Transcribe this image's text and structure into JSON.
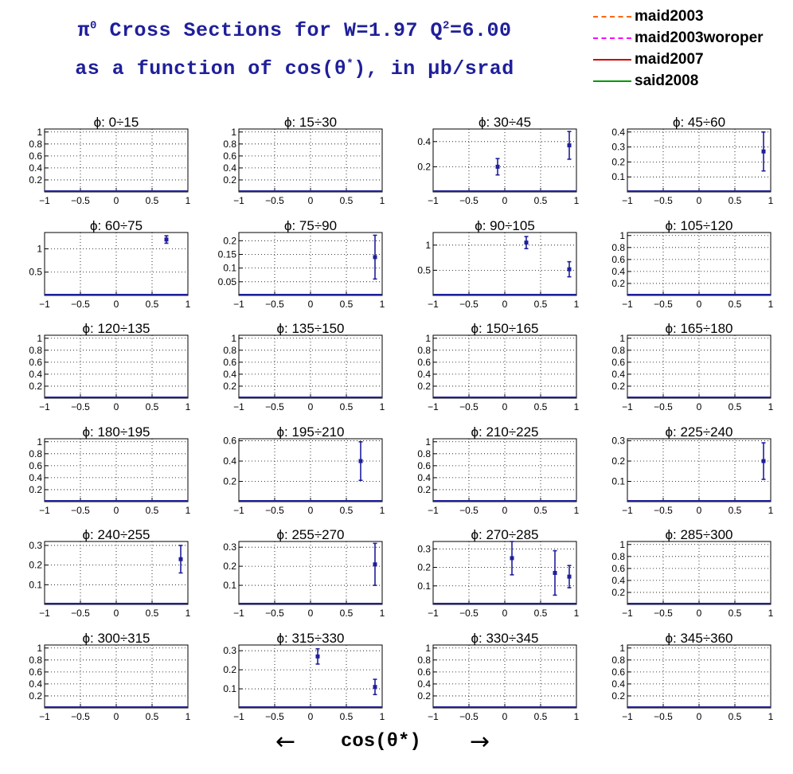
{
  "header": {
    "line1_pi": "π",
    "line1_pi_sup": "0",
    "line1_a": " Cross Sections for W=1.97  Q",
    "line1_q_sup": "2",
    "line1_b": "=6.00",
    "line2_a": "as a function of cos(θ",
    "line2_sup": "*",
    "line2_b": "), in μb/srad"
  },
  "legend": [
    {
      "label": "maid2003",
      "color": "#ff6600",
      "style": "dashdot"
    },
    {
      "label": "maid2003woroper",
      "color": "#ff00ff",
      "style": "dashed"
    },
    {
      "label": "maid2007",
      "color": "#cc0000",
      "style": "solid"
    },
    {
      "label": "said2008",
      "color": "#009900",
      "style": "solid"
    }
  ],
  "footer": {
    "left_arrow": "←",
    "xlabel": "cos(θ*)",
    "right_arrow": "→"
  },
  "colors": {
    "title": "#1f1f9a",
    "points": "#1f1f9a",
    "baseline": "#1f1f9a"
  },
  "chart_data": {
    "type": "scatter",
    "xlabel": "cos(θ*)",
    "ylabel": "",
    "xlim": [
      -1,
      1
    ],
    "xticks": [
      "−1",
      "−0.5",
      "0",
      "0.5",
      "1"
    ],
    "grid": true,
    "panels": [
      {
        "title": "ϕ:  0÷15",
        "ylim": [
          0,
          1.05
        ],
        "yticks": [
          "0.2",
          "0.4",
          "0.6",
          "0.8",
          "1"
        ],
        "points": []
      },
      {
        "title": "ϕ:  15÷30",
        "ylim": [
          0,
          1.05
        ],
        "yticks": [
          "0.2",
          "0.4",
          "0.6",
          "0.8",
          "1"
        ],
        "points": []
      },
      {
        "title": "ϕ:  30÷45",
        "ylim": [
          0,
          0.5
        ],
        "yticks": [
          "0.2",
          "0.4"
        ],
        "points": [
          {
            "x": -0.1,
            "y": 0.2,
            "err": 0.065
          },
          {
            "x": 0.9,
            "y": 0.37,
            "err": 0.11
          }
        ]
      },
      {
        "title": "ϕ:  45÷60",
        "ylim": [
          0,
          0.42
        ],
        "yticks": [
          "0.1",
          "0.2",
          "0.3",
          "0.4"
        ],
        "points": [
          {
            "x": 0.9,
            "y": 0.27,
            "err": 0.13
          }
        ]
      },
      {
        "title": "ϕ:  60÷75",
        "ylim": [
          0,
          1.35
        ],
        "yticks": [
          "0.5",
          "1"
        ],
        "points": [
          {
            "x": 0.7,
            "y": 1.2,
            "err": 0.08
          }
        ]
      },
      {
        "title": "ϕ:  75÷90",
        "ylim": [
          0,
          0.23
        ],
        "yticks": [
          "0.05",
          "0.1",
          "0.15",
          "0.2"
        ],
        "points": [
          {
            "x": 0.9,
            "y": 0.14,
            "err": 0.08
          }
        ]
      },
      {
        "title": "ϕ:  90÷105",
        "ylim": [
          0,
          1.25
        ],
        "yticks": [
          "0.5",
          "1"
        ],
        "points": [
          {
            "x": 0.3,
            "y": 1.05,
            "err": 0.12
          },
          {
            "x": 0.9,
            "y": 0.52,
            "err": 0.15
          }
        ]
      },
      {
        "title": "ϕ: 105÷120",
        "ylim": [
          0,
          1.05
        ],
        "yticks": [
          "0.2",
          "0.4",
          "0.6",
          "0.8",
          "1"
        ],
        "points": []
      },
      {
        "title": "ϕ: 120÷135",
        "ylim": [
          0,
          1.05
        ],
        "yticks": [
          "0.2",
          "0.4",
          "0.6",
          "0.8",
          "1"
        ],
        "points": []
      },
      {
        "title": "ϕ: 135÷150",
        "ylim": [
          0,
          1.05
        ],
        "yticks": [
          "0.2",
          "0.4",
          "0.6",
          "0.8",
          "1"
        ],
        "points": []
      },
      {
        "title": "ϕ: 150÷165",
        "ylim": [
          0,
          1.05
        ],
        "yticks": [
          "0.2",
          "0.4",
          "0.6",
          "0.8",
          "1"
        ],
        "points": []
      },
      {
        "title": "ϕ: 165÷180",
        "ylim": [
          0,
          1.05
        ],
        "yticks": [
          "0.2",
          "0.4",
          "0.6",
          "0.8",
          "1"
        ],
        "points": []
      },
      {
        "title": "ϕ: 180÷195",
        "ylim": [
          0,
          1.05
        ],
        "yticks": [
          "0.2",
          "0.4",
          "0.6",
          "0.8",
          "1"
        ],
        "points": []
      },
      {
        "title": "ϕ: 195÷210",
        "ylim": [
          0,
          0.62
        ],
        "yticks": [
          "0.2",
          "0.4",
          "0.6"
        ],
        "points": [
          {
            "x": 0.7,
            "y": 0.4,
            "err": 0.19
          }
        ]
      },
      {
        "title": "ϕ: 210÷225",
        "ylim": [
          0,
          1.05
        ],
        "yticks": [
          "0.2",
          "0.4",
          "0.6",
          "0.8",
          "1"
        ],
        "points": []
      },
      {
        "title": "ϕ: 225÷240",
        "ylim": [
          0,
          0.31
        ],
        "yticks": [
          "0.1",
          "0.2",
          "0.3"
        ],
        "points": [
          {
            "x": 0.9,
            "y": 0.2,
            "err": 0.09
          }
        ]
      },
      {
        "title": "ϕ: 240÷255",
        "ylim": [
          0,
          0.32
        ],
        "yticks": [
          "0.1",
          "0.2",
          "0.3"
        ],
        "points": [
          {
            "x": 0.9,
            "y": 0.23,
            "err": 0.07
          }
        ]
      },
      {
        "title": "ϕ: 255÷270",
        "ylim": [
          0,
          0.33
        ],
        "yticks": [
          "0.1",
          "0.2",
          "0.3"
        ],
        "points": [
          {
            "x": 0.9,
            "y": 0.21,
            "err": 0.11
          }
        ]
      },
      {
        "title": "ϕ: 270÷285",
        "ylim": [
          0,
          0.34
        ],
        "yticks": [
          "0.1",
          "0.2",
          "0.3"
        ],
        "points": [
          {
            "x": 0.1,
            "y": 0.25,
            "err": 0.09
          },
          {
            "x": 0.7,
            "y": 0.17,
            "err": 0.12
          },
          {
            "x": 0.9,
            "y": 0.15,
            "err": 0.06
          }
        ]
      },
      {
        "title": "ϕ: 285÷300",
        "ylim": [
          0,
          1.05
        ],
        "yticks": [
          "0.2",
          "0.4",
          "0.6",
          "0.8",
          "1"
        ],
        "points": []
      },
      {
        "title": "ϕ: 300÷315",
        "ylim": [
          0,
          1.05
        ],
        "yticks": [
          "0.2",
          "0.4",
          "0.6",
          "0.8",
          "1"
        ],
        "points": []
      },
      {
        "title": "ϕ: 315÷330",
        "ylim": [
          0,
          0.33
        ],
        "yticks": [
          "0.1",
          "0.2",
          "0.3"
        ],
        "points": [
          {
            "x": 0.1,
            "y": 0.27,
            "err": 0.04
          },
          {
            "x": 0.9,
            "y": 0.11,
            "err": 0.04
          }
        ]
      },
      {
        "title": "ϕ: 330÷345",
        "ylim": [
          0,
          1.05
        ],
        "yticks": [
          "0.2",
          "0.4",
          "0.6",
          "0.8",
          "1"
        ],
        "points": []
      },
      {
        "title": "ϕ: 345÷360",
        "ylim": [
          0,
          1.05
        ],
        "yticks": [
          "0.2",
          "0.4",
          "0.6",
          "0.8",
          "1"
        ],
        "points": []
      }
    ]
  }
}
